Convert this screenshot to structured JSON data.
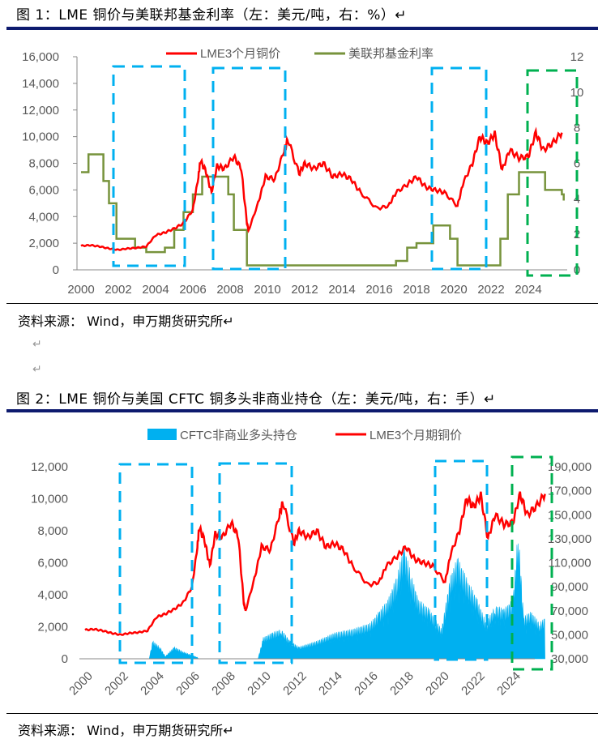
{
  "figure1": {
    "title": "图 1：LME 铜价与美联邦基金利率（左：美元/吨，右：%）↵",
    "source": "资料来源： Wind，申万期货研究所↵"
  },
  "blank_lines": [
    "↵",
    "↵"
  ],
  "figure2": {
    "title": "图 2：LME 铜价与美国 CFTC 铜多头非商业持仓（左：美元/吨，右：手）↵",
    "source": "资料来源： Wind，申万期货研究所↵"
  },
  "colors": {
    "copper": "#ff0000",
    "fed": "#77933c",
    "cftc": "#00b0f0",
    "box_blue": "#00b0f0",
    "box_green": "#00b050",
    "rule": "#0d1a6e"
  },
  "chart_data": [
    {
      "type": "line",
      "legend": [
        "LME3个月铜价",
        "美联邦基金利率"
      ],
      "legend_placement": "top",
      "x_ticks": [
        "2000",
        "2002",
        "2004",
        "2006",
        "2008",
        "2010",
        "2012",
        "2014",
        "2016",
        "2018",
        "2020",
        "2022",
        "2024"
      ],
      "y_left_ticks": [
        "0",
        "2,000",
        "4,000",
        "6,000",
        "8,000",
        "10,000",
        "12,000",
        "14,000",
        "16,000"
      ],
      "ylim_left": [
        0,
        16000
      ],
      "y_right_ticks": [
        "0",
        "2",
        "4",
        "6",
        "8",
        "10",
        "12"
      ],
      "ylim_right": [
        0,
        12
      ],
      "series": [
        {
          "name": "LME3个月铜价",
          "axis": "left",
          "points": [
            [
              2000,
              1800
            ],
            [
              2000.5,
              1850
            ],
            [
              2001,
              1750
            ],
            [
              2001.5,
              1600
            ],
            [
              2002,
              1500
            ],
            [
              2002.5,
              1600
            ],
            [
              2003,
              1650
            ],
            [
              2003.5,
              1750
            ],
            [
              2004,
              2600
            ],
            [
              2004.5,
              2800
            ],
            [
              2005,
              3100
            ],
            [
              2005.5,
              3500
            ],
            [
              2006,
              4500
            ],
            [
              2006.3,
              7000
            ],
            [
              2006.4,
              8200
            ],
            [
              2006.7,
              7400
            ],
            [
              2007,
              5800
            ],
            [
              2007.3,
              7800
            ],
            [
              2007.7,
              7600
            ],
            [
              2008.2,
              8500
            ],
            [
              2008.6,
              7600
            ],
            [
              2008.9,
              3500
            ],
            [
              2009.0,
              3000
            ],
            [
              2009.5,
              5000
            ],
            [
              2009.9,
              7000
            ],
            [
              2010.4,
              6800
            ],
            [
              2010.9,
              9000
            ],
            [
              2011.1,
              9800
            ],
            [
              2011.7,
              7200
            ],
            [
              2012,
              8000
            ],
            [
              2012.5,
              7600
            ],
            [
              2013,
              8000
            ],
            [
              2013.5,
              7000
            ],
            [
              2014,
              7200
            ],
            [
              2014.5,
              6800
            ],
            [
              2015,
              5800
            ],
            [
              2015.9,
              4600
            ],
            [
              2016.5,
              4800
            ],
            [
              2016.9,
              5800
            ],
            [
              2017.5,
              6400
            ],
            [
              2018,
              7000
            ],
            [
              2018.5,
              6200
            ],
            [
              2019,
              6000
            ],
            [
              2019.5,
              5800
            ],
            [
              2020.2,
              4800
            ],
            [
              2020.5,
              6500
            ],
            [
              2021,
              8000
            ],
            [
              2021.4,
              10000
            ],
            [
              2021.8,
              9500
            ],
            [
              2022.2,
              10200
            ],
            [
              2022.6,
              7500
            ],
            [
              2023,
              9000
            ],
            [
              2023.5,
              8400
            ],
            [
              2024,
              8500
            ],
            [
              2024.4,
              10300
            ],
            [
              2024.8,
              9000
            ],
            [
              2025.3,
              9500
            ],
            [
              2025.8,
              10300
            ]
          ]
        },
        {
          "name": "美联邦基金利率",
          "axis": "right",
          "step": true,
          "points": [
            [
              2000,
              5.5
            ],
            [
              2000.4,
              6.5
            ],
            [
              2001,
              6.5
            ],
            [
              2001.2,
              5
            ],
            [
              2001.5,
              3.75
            ],
            [
              2001.9,
              1.75
            ],
            [
              2002.9,
              1.25
            ],
            [
              2003.5,
              1
            ],
            [
              2004.5,
              1.25
            ],
            [
              2005,
              2.25
            ],
            [
              2005.5,
              3.25
            ],
            [
              2006,
              4.25
            ],
            [
              2006.5,
              5.25
            ],
            [
              2007.6,
              5.25
            ],
            [
              2007.9,
              4.25
            ],
            [
              2008.2,
              2.25
            ],
            [
              2008.9,
              0.25
            ],
            [
              2015.9,
              0.25
            ],
            [
              2016.9,
              0.5
            ],
            [
              2017.5,
              1.25
            ],
            [
              2018,
              1.5
            ],
            [
              2018.9,
              2.5
            ],
            [
              2019.5,
              2.5
            ],
            [
              2019.8,
              1.75
            ],
            [
              2020.2,
              0.25
            ],
            [
              2022.2,
              0.25
            ],
            [
              2022.5,
              1.75
            ],
            [
              2022.9,
              4.25
            ],
            [
              2023.5,
              5.5
            ],
            [
              2024.7,
              5.5
            ],
            [
              2024.9,
              4.5
            ],
            [
              2025.8,
              4.25
            ],
            [
              2025.9,
              3.9
            ]
          ]
        }
      ]
    },
    {
      "type": "bar+line",
      "legend": [
        "CFTC非商业多头持仓",
        "LME3个月期铜价"
      ],
      "legend_placement": "top",
      "x_ticks": [
        "2000",
        "2002",
        "2004",
        "2006",
        "2008",
        "2010",
        "2012",
        "2014",
        "2016",
        "2018",
        "2020",
        "2022",
        "2024"
      ],
      "y_left_ticks": [
        "0",
        "2,000",
        "4,000",
        "6,000",
        "8,000",
        "10,000",
        "12,000"
      ],
      "ylim_left": [
        0,
        12000
      ],
      "y_right_ticks": [
        "30,000",
        "50,000",
        "70,000",
        "90,000",
        "110,000",
        "130,000",
        "150,000",
        "170,000",
        "190,000"
      ],
      "ylim_right": [
        30000,
        190000
      ],
      "series": [
        {
          "name": "CFTC非商业多头持仓",
          "axis": "right",
          "points": [
            [
              2000,
              30000
            ],
            [
              2003.6,
              31000
            ],
            [
              2003.8,
              45000
            ],
            [
              2004.2,
              40000
            ],
            [
              2004.5,
              32000
            ],
            [
              2005,
              40000
            ],
            [
              2005.5,
              36000
            ],
            [
              2006,
              33000
            ],
            [
              2006.5,
              30000
            ],
            [
              2009.7,
              30000
            ],
            [
              2010,
              48000
            ],
            [
              2010.5,
              52000
            ],
            [
              2011,
              55000
            ],
            [
              2011.5,
              45000
            ],
            [
              2012,
              40000
            ],
            [
              2013,
              45000
            ],
            [
              2014,
              52000
            ],
            [
              2015,
              55000
            ],
            [
              2016,
              60000
            ],
            [
              2016.5,
              70000
            ],
            [
              2017,
              80000
            ],
            [
              2017.5,
              100000
            ],
            [
              2017.9,
              125000
            ],
            [
              2018.3,
              100000
            ],
            [
              2018.7,
              80000
            ],
            [
              2019.3,
              72000
            ],
            [
              2020,
              55000
            ],
            [
              2020.5,
              100000
            ],
            [
              2020.9,
              115000
            ],
            [
              2021.5,
              95000
            ],
            [
              2022,
              80000
            ],
            [
              2022.5,
              60000
            ],
            [
              2023,
              75000
            ],
            [
              2023.5,
              72000
            ],
            [
              2024,
              80000
            ],
            [
              2024.3,
              140000
            ],
            [
              2024.6,
              65000
            ],
            [
              2025,
              70000
            ],
            [
              2025.5,
              60000
            ],
            [
              2025.8,
              65000
            ]
          ]
        },
        {
          "name": "LME3个月期铜价",
          "axis": "left",
          "ref": "same as chart 1 copper"
        }
      ]
    }
  ]
}
